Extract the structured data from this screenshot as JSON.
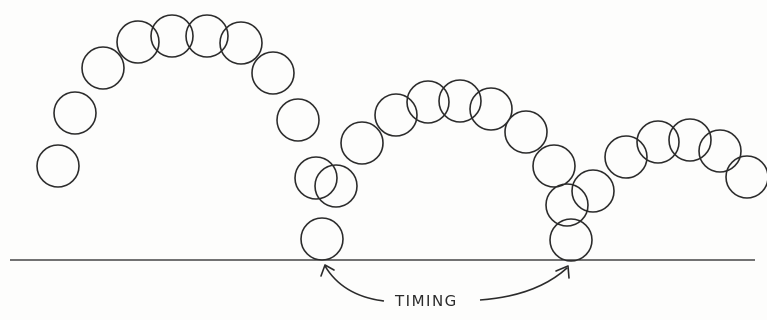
{
  "diagram": {
    "label": "TIMING"
  }
}
